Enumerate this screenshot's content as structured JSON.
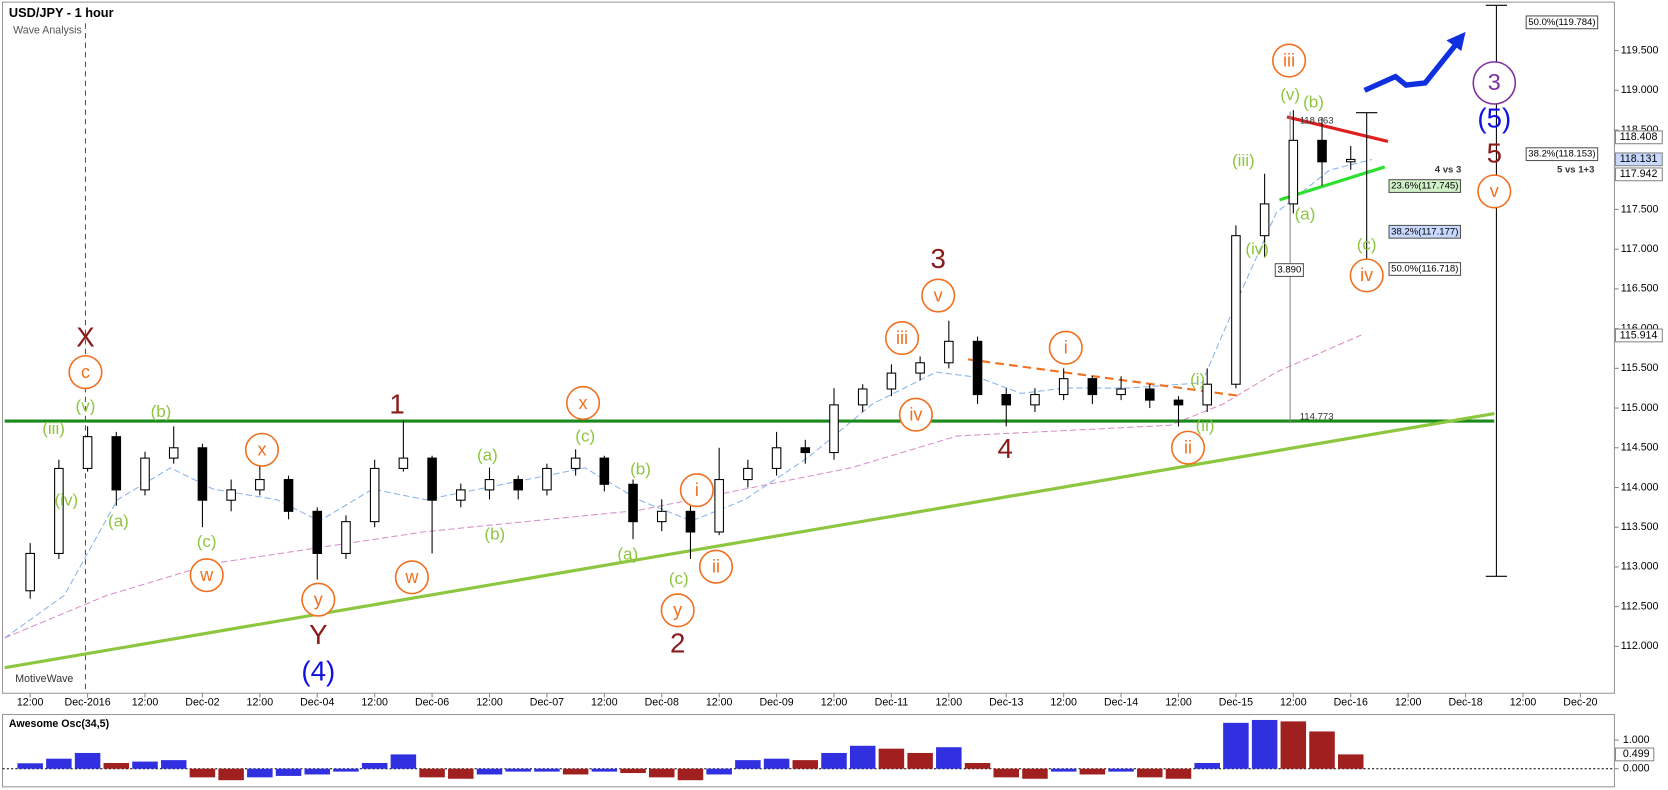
{
  "chart_data": {
    "type": "candlestick",
    "title": "USD/JPY - 1 hour",
    "subtitle": "Wave Analysis",
    "watermark": "MotiveWave",
    "categories": [
      "12:00",
      null,
      "Dec-2016",
      null,
      "12:00",
      null,
      "Dec-02",
      null,
      "12:00",
      null,
      "Dec-04",
      null,
      "12:00",
      null,
      "Dec-06",
      null,
      "12:00",
      null,
      "Dec-07",
      null,
      "12:00",
      null,
      "Dec-08",
      null,
      "12:00",
      null,
      "Dec-09",
      null,
      "12:00",
      null,
      "Dec-11",
      null,
      "12:00",
      null,
      "Dec-13",
      null,
      "12:00",
      null,
      "Dec-14",
      null,
      "12:00",
      null,
      "Dec-15",
      null,
      "12:00",
      null,
      "Dec-16",
      null,
      "12:00",
      null,
      "Dec-18",
      null,
      "12:00",
      null,
      "Dec-20"
    ],
    "open": [
      112.7,
      113.17,
      114.24,
      114.64,
      113.97,
      114.37,
      114.5,
      113.84,
      113.97,
      114.1,
      113.7,
      113.17,
      113.57,
      114.24,
      114.37,
      113.84,
      113.97,
      114.1,
      113.97,
      114.24,
      114.37,
      114.04,
      113.57,
      113.7,
      113.44,
      114.1,
      114.24,
      114.5,
      114.44,
      115.04,
      115.24,
      115.44,
      115.57,
      115.84,
      115.17,
      115.04,
      115.17,
      115.37,
      115.17,
      115.24,
      115.1,
      115.04,
      115.3,
      117.17,
      117.57,
      118.37,
      118.1,
      null,
      null,
      null,
      null,
      null,
      null,
      null,
      null
    ],
    "high": [
      113.3,
      114.35,
      114.77,
      114.7,
      114.45,
      114.77,
      114.55,
      114.1,
      114.28,
      114.15,
      113.75,
      113.65,
      114.35,
      114.84,
      114.4,
      114.05,
      114.25,
      114.15,
      114.3,
      114.48,
      114.4,
      114.1,
      113.85,
      113.8,
      114.5,
      114.35,
      114.7,
      114.6,
      115.25,
      115.3,
      115.55,
      115.65,
      116.1,
      115.9,
      115.25,
      115.25,
      115.5,
      115.4,
      115.4,
      115.3,
      115.15,
      115.5,
      117.3,
      117.95,
      118.75,
      118.66,
      118.3,
      null,
      null,
      null,
      null,
      null,
      null,
      null,
      null
    ],
    "low": [
      112.6,
      113.1,
      114.2,
      113.77,
      113.9,
      114.3,
      113.5,
      113.7,
      113.9,
      113.6,
      112.84,
      113.1,
      113.5,
      114.2,
      113.17,
      113.75,
      113.85,
      113.85,
      113.9,
      114.15,
      113.95,
      113.35,
      113.45,
      113.1,
      113.4,
      114.0,
      114.15,
      114.3,
      114.35,
      114.95,
      115.15,
      115.35,
      115.5,
      115.05,
      114.77,
      114.95,
      115.1,
      115.05,
      115.1,
      115.0,
      114.77,
      114.95,
      115.25,
      116.9,
      117.45,
      117.8,
      118.0,
      null,
      null,
      null,
      null,
      null,
      null,
      null,
      null
    ],
    "close": [
      113.17,
      114.24,
      114.64,
      113.97,
      114.37,
      114.5,
      113.84,
      113.97,
      114.1,
      113.7,
      113.17,
      113.57,
      114.24,
      114.37,
      113.84,
      113.97,
      114.1,
      113.97,
      114.24,
      114.37,
      114.04,
      113.57,
      113.7,
      113.44,
      114.1,
      114.24,
      114.5,
      114.44,
      115.04,
      115.24,
      115.44,
      115.57,
      115.84,
      115.17,
      115.04,
      115.17,
      115.37,
      115.17,
      115.24,
      115.1,
      115.04,
      115.3,
      117.17,
      117.57,
      118.37,
      118.1,
      118.13,
      null,
      null,
      null,
      null,
      null,
      null,
      null,
      null
    ],
    "up_color": "#ffffff",
    "down_color": "#000000",
    "ylim": [
      111.41,
      120.11
    ],
    "yticks": [
      {
        "value": 112,
        "label": "112.000"
      },
      {
        "value": 112.5,
        "label": "112.500"
      },
      {
        "value": 113,
        "label": "113.000"
      },
      {
        "value": 113.5,
        "label": "113.500"
      },
      {
        "value": 114,
        "label": "114.000"
      },
      {
        "value": 114.5,
        "label": "114.500"
      },
      {
        "value": 115,
        "label": "115.000"
      },
      {
        "value": 115.5,
        "label": "115.500"
      },
      {
        "value": 116,
        "label": "116.000"
      },
      {
        "value": 116.5,
        "label": "116.500"
      },
      {
        "value": 117,
        "label": "117.000"
      },
      {
        "value": 117.5,
        "label": "117.500"
      },
      {
        "value": 118.5,
        "label": "118.500"
      },
      {
        "value": 119,
        "label": "119.000"
      },
      {
        "value": 119.5,
        "label": "119.500"
      }
    ],
    "price_labels": [
      {
        "value": 118.408,
        "label": "118.408"
      },
      {
        "value": 118.131,
        "label": "118.131"
      },
      {
        "value": 117.942,
        "label": "117.942"
      },
      {
        "value": 115.914,
        "label": "115.914"
      }
    ],
    "annotations": [
      {
        "text": "50.0%(119.784)"
      },
      {
        "text": "38.2%(118.153)"
      },
      {
        "text": "23.6%(117.745)"
      },
      {
        "text": "38.2%(117.177)"
      },
      {
        "text": "50.0%(116.718)"
      },
      {
        "text": "4 vs 3"
      },
      {
        "text": "5 vs 1+3"
      },
      {
        "text": "118.663"
      },
      {
        "text": "3.890"
      },
      {
        "text": "114.773"
      }
    ],
    "wave_labels": [
      {
        "text": "c",
        "color": "#f07020",
        "circled": true
      },
      {
        "text": "x",
        "color": "#f07020",
        "circled": true
      },
      {
        "text": "w",
        "color": "#f07020",
        "circled": true
      },
      {
        "text": "y",
        "color": "#f07020",
        "circled": true
      },
      {
        "text": "w",
        "color": "#f07020",
        "circled": true
      },
      {
        "text": "x",
        "color": "#f07020",
        "circled": true
      },
      {
        "text": "i",
        "color": "#f07020",
        "circled": true
      },
      {
        "text": "y",
        "color": "#f07020",
        "circled": true
      },
      {
        "text": "ii",
        "color": "#f07020",
        "circled": true
      },
      {
        "text": "iii",
        "color": "#f07020",
        "circled": true
      },
      {
        "text": "v",
        "color": "#f07020",
        "circled": true
      },
      {
        "text": "iv",
        "color": "#f07020",
        "circled": true
      },
      {
        "text": "i",
        "color": "#f07020",
        "circled": true
      },
      {
        "text": "ii",
        "color": "#f07020",
        "circled": true
      },
      {
        "text": "iii",
        "color": "#f07020",
        "circled": true
      },
      {
        "text": "iv",
        "color": "#f07020",
        "circled": true
      },
      {
        "text": "v",
        "color": "#f07020",
        "circled": true
      },
      {
        "text": "(iii)",
        "color": "#8dc63f"
      },
      {
        "text": "(v)",
        "color": "#8dc63f"
      },
      {
        "text": "(iv)",
        "color": "#8dc63f"
      },
      {
        "text": "(a)",
        "color": "#8dc63f"
      },
      {
        "text": "(b)",
        "color": "#8dc63f"
      },
      {
        "text": "(c)",
        "color": "#8dc63f"
      },
      {
        "text": "(a)",
        "color": "#8dc63f"
      },
      {
        "text": "(b)",
        "color": "#8dc63f"
      },
      {
        "text": "(c)",
        "color": "#8dc63f"
      },
      {
        "text": "(b)",
        "color": "#8dc63f"
      },
      {
        "text": "(a)",
        "color": "#8dc63f"
      },
      {
        "text": "(c)",
        "color": "#8dc63f"
      },
      {
        "text": "(i)",
        "color": "#8dc63f"
      },
      {
        "text": "(ii)",
        "color": "#8dc63f"
      },
      {
        "text": "(iii)",
        "color": "#8dc63f"
      },
      {
        "text": "(iv)",
        "color": "#8dc63f"
      },
      {
        "text": "(v)",
        "color": "#8dc63f"
      },
      {
        "text": "(b)",
        "color": "#8dc63f"
      },
      {
        "text": "(a)",
        "color": "#8dc63f"
      },
      {
        "text": "(c)",
        "color": "#8dc63f"
      },
      {
        "text": "X",
        "color": "#8b1a1a"
      },
      {
        "text": "Y",
        "color": "#8b1a1a"
      },
      {
        "text": "1",
        "color": "#8b1a1a"
      },
      {
        "text": "2",
        "color": "#8b1a1a"
      },
      {
        "text": "3",
        "color": "#8b1a1a"
      },
      {
        "text": "4",
        "color": "#8b1a1a"
      },
      {
        "text": "5",
        "color": "#8b1a1a"
      },
      {
        "text": "(4)",
        "color": "#1010e0"
      },
      {
        "text": "(5)",
        "color": "#1010e0"
      },
      {
        "text": "3",
        "color": "#8030a0",
        "circled": true
      }
    ],
    "oscillator": {
      "title": "Awesome Osc(34,5)",
      "values": [
        0.19,
        0.35,
        0.55,
        0.2,
        0.25,
        0.3,
        -0.3,
        -0.4,
        -0.3,
        -0.25,
        -0.2,
        -0.1,
        0.2,
        0.5,
        -0.3,
        -0.35,
        -0.2,
        -0.1,
        -0.1,
        -0.2,
        -0.1,
        -0.15,
        -0.3,
        -0.4,
        -0.2,
        0.3,
        0.35,
        0.3,
        0.55,
        0.8,
        0.7,
        0.55,
        0.75,
        0.2,
        -0.3,
        -0.35,
        -0.1,
        -0.2,
        -0.1,
        -0.3,
        -0.35,
        0.2,
        1.6,
        1.7,
        1.65,
        1.3,
        0.5,
        null,
        null,
        null,
        null,
        null,
        null,
        null,
        null
      ],
      "up_color": "#3030e0",
      "down_color": "#a02020",
      "ylim": [
        -0.63,
        1.89
      ],
      "yticks": [
        {
          "value": 0,
          "label": "0.000"
        },
        {
          "value": 1,
          "label": "1.000"
        }
      ],
      "price_label": {
        "value": 0.499,
        "label": "0.499"
      }
    }
  }
}
